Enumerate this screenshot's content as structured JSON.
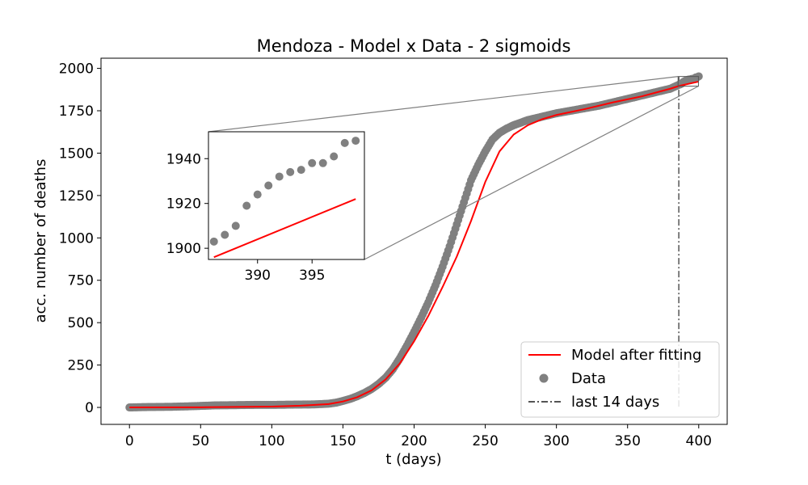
{
  "chart_data": {
    "type": "scatter",
    "title": "Mendoza - Model x Data - 2 sigmoids",
    "xlabel": "t (days)",
    "ylabel": "acc. number of deaths",
    "xlim": [
      -20,
      420
    ],
    "ylim": [
      -100,
      2060
    ],
    "xticks": [
      0,
      50,
      100,
      150,
      200,
      250,
      300,
      350,
      400
    ],
    "yticks": [
      0,
      250,
      500,
      750,
      1000,
      1250,
      1500,
      1750,
      2000
    ],
    "grid": false,
    "legend_position": "bottom-right",
    "legend": [
      "Model after fitting",
      "Data",
      "last 14 days"
    ],
    "colors": {
      "model": "#ff0000",
      "data": "#808080",
      "vline": "#555555",
      "inset_lines": "#808080"
    },
    "last_14_days_start": 386,
    "data_series": {
      "name": "Data",
      "x": [
        0,
        10,
        20,
        30,
        40,
        50,
        60,
        70,
        80,
        90,
        100,
        110,
        120,
        130,
        140,
        145,
        150,
        155,
        160,
        165,
        170,
        175,
        180,
        185,
        190,
        195,
        200,
        205,
        210,
        215,
        220,
        225,
        230,
        235,
        240,
        245,
        250,
        255,
        260,
        265,
        270,
        275,
        280,
        285,
        290,
        295,
        300,
        310,
        320,
        330,
        340,
        350,
        360,
        370,
        380,
        386,
        387,
        388,
        389,
        390,
        391,
        392,
        393,
        394,
        395,
        396,
        397,
        398,
        399,
        400
      ],
      "y": [
        0,
        2,
        3,
        4,
        6,
        9,
        12,
        13,
        14,
        15,
        15,
        16,
        17,
        18,
        22,
        28,
        38,
        50,
        66,
        85,
        108,
        138,
        175,
        225,
        290,
        365,
        445,
        530,
        620,
        720,
        830,
        950,
        1080,
        1210,
        1340,
        1430,
        1510,
        1580,
        1620,
        1645,
        1665,
        1680,
        1695,
        1705,
        1715,
        1725,
        1735,
        1750,
        1765,
        1780,
        1800,
        1820,
        1840,
        1860,
        1880,
        1903,
        1906,
        1910,
        1919,
        1924,
        1928,
        1932,
        1934,
        1935,
        1938,
        1938,
        1941,
        1947,
        1948,
        1953
      ]
    },
    "model_series": {
      "name": "Model after fitting",
      "x": [
        0,
        50,
        100,
        120,
        140,
        150,
        160,
        170,
        180,
        190,
        200,
        210,
        220,
        230,
        240,
        250,
        260,
        270,
        280,
        290,
        300,
        320,
        340,
        360,
        380,
        386,
        400
      ],
      "y": [
        0,
        1,
        5,
        10,
        20,
        35,
        60,
        100,
        165,
        260,
        390,
        540,
        710,
        890,
        1100,
        1330,
        1510,
        1610,
        1665,
        1700,
        1725,
        1760,
        1800,
        1835,
        1880,
        1896,
        1922
      ]
    },
    "inset": {
      "xlim": [
        385.5,
        399.8
      ],
      "ylim": [
        1895,
        1952
      ],
      "xticks": [
        390,
        395
      ],
      "yticks": [
        1900,
        1920,
        1940
      ],
      "data_x": [
        386,
        387,
        388,
        389,
        390,
        391,
        392,
        393,
        394,
        395,
        396,
        397,
        398,
        399
      ],
      "data_y": [
        1903,
        1906,
        1910,
        1919,
        1924,
        1928,
        1932,
        1934,
        1935,
        1938,
        1938,
        1941,
        1947,
        1948
      ],
      "model_x": [
        386,
        399
      ],
      "model_y": [
        1896,
        1922
      ]
    }
  }
}
